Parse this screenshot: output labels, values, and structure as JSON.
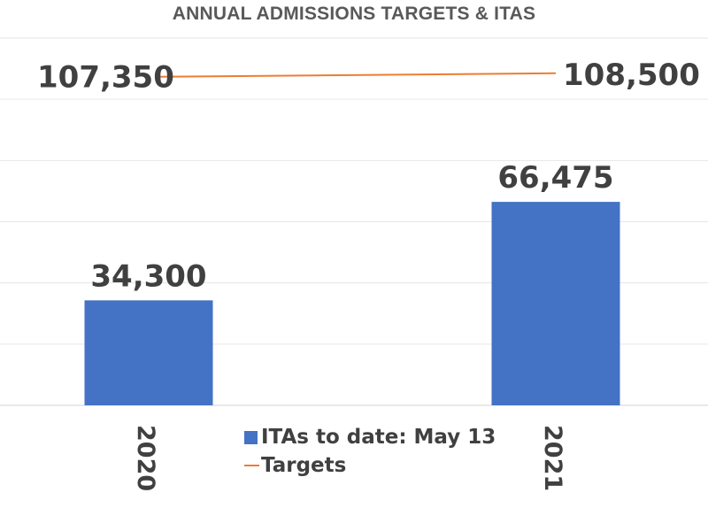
{
  "chart_data": {
    "type": "bar",
    "title": "ANNUAL ADMISSIONS TARGETS & ITAS",
    "categories": [
      "2020",
      "2021"
    ],
    "series": [
      {
        "name": "ITAs to date: May 13",
        "kind": "bar",
        "color": "#4472c4",
        "values": [
          34300,
          66475
        ],
        "labels": [
          "34,300",
          "66,475"
        ]
      },
      {
        "name": "Targets",
        "kind": "line",
        "color": "#ed7d31",
        "values": [
          107350,
          108500
        ],
        "labels": [
          "107,350",
          "108,500"
        ]
      }
    ],
    "ylim": [
      0,
      120000
    ],
    "grid": true,
    "legend": "bottom-center",
    "xlabel": "",
    "ylabel": "",
    "tick_orientation": "rotated-vertical"
  }
}
